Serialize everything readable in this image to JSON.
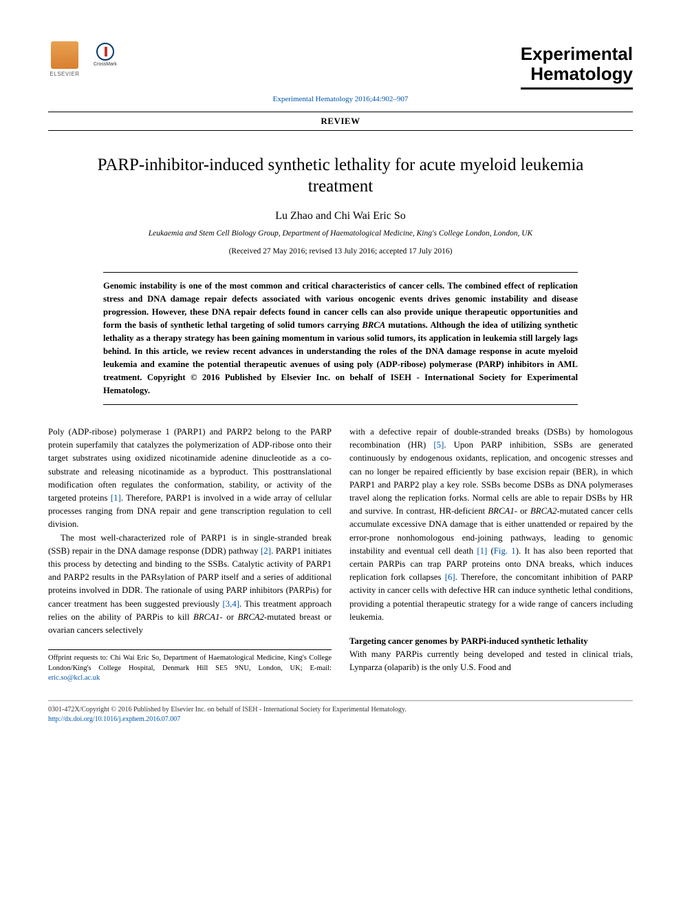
{
  "header": {
    "elsevier_label": "ELSEVIER",
    "crossmark_label": "CrossMark",
    "journal_brand_line1": "Experimental",
    "journal_brand_line2": "Hematology",
    "citation": "Experimental Hematology 2016;44:902–907",
    "article_type": "REVIEW"
  },
  "front": {
    "title": "PARP-inhibitor-induced synthetic lethality for acute myeloid leukemia treatment",
    "authors": "Lu Zhao and Chi Wai Eric So",
    "affiliation": "Leukaemia and Stem Cell Biology Group, Department of Haematological Medicine, King's College London, London, UK",
    "dates": "(Received 27 May 2016; revised 13 July 2016; accepted 17 July 2016)"
  },
  "abstract": {
    "text_1": "Genomic instability is one of the most common and critical characteristics of cancer cells. The combined effect of replication stress and DNA damage repair defects associated with various oncogenic events drives genomic instability and disease progression. However, these DNA repair defects found in cancer cells can also provide unique therapeutic opportunities and form the basis of synthetic lethal targeting of solid tumors carrying ",
    "brca": "BRCA",
    "text_2": " mutations. Although the idea of utilizing synthetic lethality as a therapy strategy has been gaining momentum in various solid tumors, its application in leukemia still largely lags behind. In this article, we review recent advances in understanding the roles of the DNA damage response in acute myeloid leukemia and examine the potential therapeutic avenues of using poly (ADP-ribose) polymerase (PARP) inhibitors in AML treatment.  Copyright © 2016 Published by Elsevier Inc. on behalf of ISEH - International Society for Experimental Hematology."
  },
  "body": {
    "p1_a": "Poly (ADP-ribose) polymerase 1 (PARP1) and PARP2 belong to the PARP protein superfamily that catalyzes the polymerization of ADP-ribose onto their target substrates using oxidized nicotinamide adenine dinucleotide as a co-substrate and releasing nicotinamide as a byproduct. This posttranslational modification often regulates the conformation, stability, or activity of the targeted proteins ",
    "ref1": "[1]",
    "p1_b": ". Therefore, PARP1 is involved in a wide array of cellular processes ranging from DNA repair and gene transcription regulation to cell division.",
    "p2_a": "The most well-characterized role of PARP1 is in single-stranded break (SSB) repair in the DNA damage response (DDR) pathway ",
    "ref2": "[2]",
    "p2_b": ". PARP1 initiates this process by detecting and binding to the SSBs. Catalytic activity of PARP1 and PARP2 results in the PARsylation of PARP itself and a series of additional proteins involved in DDR. The rationale of using PARP inhibitors (PARPis) for cancer treatment has been suggested previously ",
    "ref34": "[3,4]",
    "p2_c": ". This treatment approach relies on the ability of PARPis to kill ",
    "brca1": "BRCA1",
    "p2_d": "- or ",
    "brca2": "BRCA2",
    "p2_e": "-mutated breast or ovarian cancers selectively",
    "p3_a": "with a defective repair of double-stranded breaks (DSBs) by homologous recombination (HR) ",
    "ref5": "[5]",
    "p3_b": ". Upon PARP inhibition, SSBs are generated continuously by endogenous oxidants, replication, and oncogenic stresses and can no longer be repaired efficiently by base excision repair (BER), in which PARP1 and PARP2 play a key role. SSBs become DSBs as DNA polymerases travel along the replication forks. Normal cells are able to repair DSBs by HR and survive. In contrast, HR-deficient ",
    "p3_c": "- or ",
    "p3_d": "-mutated cancer cells accumulate excessive DNA damage that is either unattended or repaired by the error-prone nonhomologous end-joining pathways, leading to genomic instability and eventual cell death ",
    "ref1b": "[1]",
    "p3_e": " (",
    "fig1": "Fig. 1",
    "p3_f": "). It has also been reported that certain PARPis can trap PARP proteins onto DNA breaks, which induces replication fork collapses ",
    "ref6": "[6]",
    "p3_g": ". Therefore, the concomitant inhibition of PARP activity in cancer cells with defective HR can induce synthetic lethal conditions, providing a potential therapeutic strategy for a wide range of cancers including leukemia.",
    "section2_head": "Targeting cancer genomes by PARPi-induced synthetic lethality",
    "p4": "With many PARPis currently being developed and tested in clinical trials, Lynparza (olaparib) is the only U.S. Food and"
  },
  "footnote": {
    "text_a": "Offprint requests to: Chi Wai Eric So, Department of Haematological Medicine, King's College London/King's College Hospital, Denmark Hill SE5 9NU, London, UK; E-mail: ",
    "email": "eric.so@kcl.ac.uk"
  },
  "footer": {
    "copyright": "0301-472X/Copyright © 2016 Published by Elsevier Inc. on behalf of ISEH - International Society for Experimental Hematology.",
    "doi": "http://dx.doi.org/10.1016/j.exphem.2016.07.007"
  },
  "colors": {
    "link": "#0054a6",
    "text": "#000000",
    "footer_text": "#333333"
  }
}
